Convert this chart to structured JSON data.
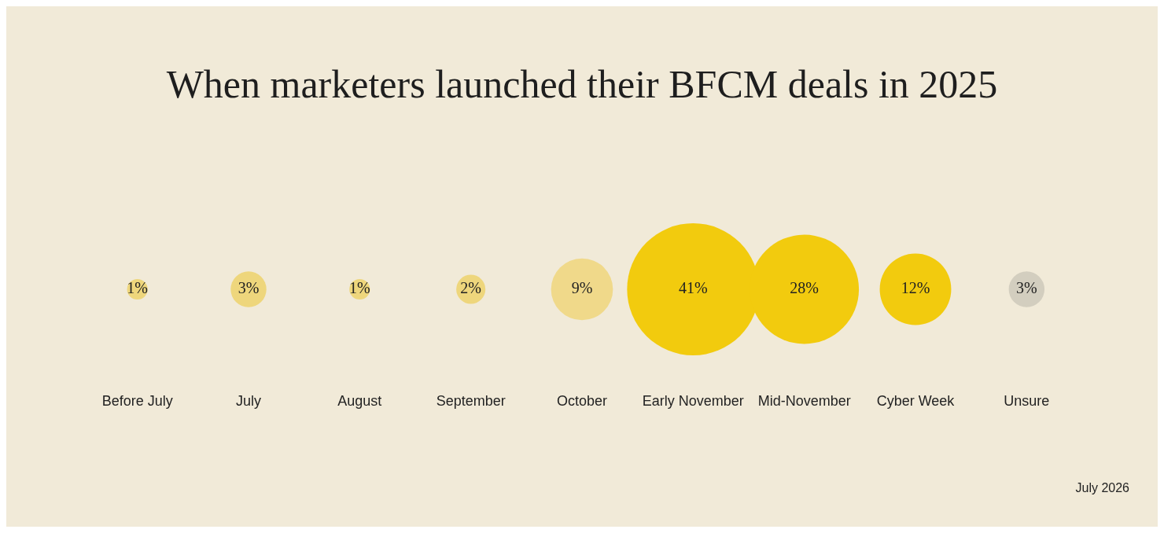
{
  "chart_data": {
    "type": "other",
    "title": "When marketers launched their BFCM deals in 2025",
    "categories": [
      "Before July",
      "July",
      "August",
      "September",
      "October",
      "Early November",
      "Mid-November",
      "Cyber Week",
      "Unsure"
    ],
    "values": [
      1,
      3,
      1,
      2,
      9,
      41,
      28,
      12,
      3
    ],
    "value_labels": [
      "1%",
      "3%",
      "1%",
      "2%",
      "9%",
      "41%",
      "28%",
      "12%",
      "3%"
    ],
    "colors": [
      "#eed67c",
      "#eed67c",
      "#eed67c",
      "#eed67c",
      "#f0d98a",
      "#f2cb0e",
      "#f2cb0e",
      "#f2cb0e",
      "#d3cebf"
    ],
    "legend": false,
    "annotations": [
      "July 2026"
    ]
  }
}
